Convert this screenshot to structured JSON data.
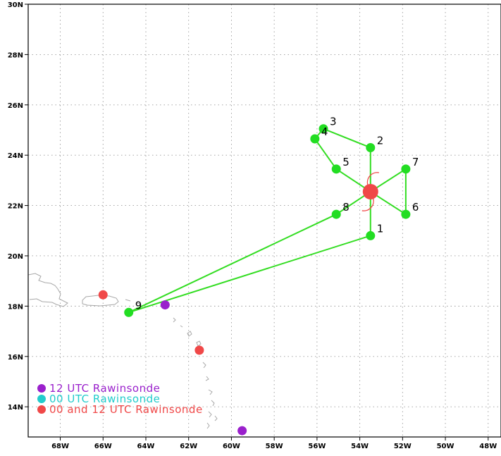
{
  "map": {
    "lon_range": [
      -69.5,
      -47.4
    ],
    "lat_range": [
      12.8,
      30.0
    ],
    "x_ticks": [
      {
        "lon": -68,
        "label": "68W"
      },
      {
        "lon": -66,
        "label": "66W"
      },
      {
        "lon": -64,
        "label": "64W"
      },
      {
        "lon": -62,
        "label": "62W"
      },
      {
        "lon": -60,
        "label": "60W"
      },
      {
        "lon": -58,
        "label": "58W"
      },
      {
        "lon": -56,
        "label": "56W"
      },
      {
        "lon": -54,
        "label": "54W"
      },
      {
        "lon": -52,
        "label": "52W"
      },
      {
        "lon": -50,
        "label": "50W"
      },
      {
        "lon": -48,
        "label": "48W"
      }
    ],
    "y_ticks": [
      {
        "lat": 14,
        "label": "14N"
      },
      {
        "lat": 16,
        "label": "16N"
      },
      {
        "lat": 18,
        "label": "18N"
      },
      {
        "lat": 20,
        "label": "20N"
      },
      {
        "lat": 22,
        "label": "22N"
      },
      {
        "lat": 24,
        "label": "24N"
      },
      {
        "lat": 26,
        "label": "26N"
      },
      {
        "lat": 28,
        "label": "28N"
      },
      {
        "lat": 30,
        "label": "30N"
      }
    ],
    "grid": true
  },
  "center": {
    "lon": -53.5,
    "lat": 22.55,
    "color": "#f04848"
  },
  "flight_points": [
    {
      "label": "1",
      "lon": -53.5,
      "lat": 20.8
    },
    {
      "label": "2",
      "lon": -53.5,
      "lat": 24.3
    },
    {
      "label": "3",
      "lon": -55.7,
      "lat": 25.05
    },
    {
      "label": "4",
      "lon": -56.1,
      "lat": 24.65
    },
    {
      "label": "5",
      "lon": -55.1,
      "lat": 23.45
    },
    {
      "label": "6",
      "lon": -51.85,
      "lat": 21.65
    },
    {
      "label": "7",
      "lon": -51.85,
      "lat": 23.45
    },
    {
      "label": "8",
      "lon": -55.1,
      "lat": 21.65
    },
    {
      "label": "9",
      "lon": -64.8,
      "lat": 17.75
    }
  ],
  "track_order": [
    9,
    1,
    "C",
    2,
    3,
    4,
    5,
    "C",
    6,
    7,
    "C",
    8,
    9
  ],
  "track_color": "#33dd22",
  "point_color": "#22dd22",
  "rawinsondes": [
    {
      "type": "12",
      "lon": -63.1,
      "lat": 18.05
    },
    {
      "type": "12",
      "lon": -59.5,
      "lat": 13.05
    },
    {
      "type": "both",
      "lon": -66.0,
      "lat": 18.45
    },
    {
      "type": "both",
      "lon": -61.5,
      "lat": 16.25
    }
  ],
  "legend": [
    {
      "key": "12",
      "text": "12 UTC Rawinsonde",
      "color": "#9a20cc"
    },
    {
      "key": "00",
      "text": "00 UTC Rawinsonde",
      "color": "#22cccc"
    },
    {
      "key": "both",
      "text": "00 and 12 UTC Rawinsonde",
      "color": "#f04848"
    }
  ]
}
